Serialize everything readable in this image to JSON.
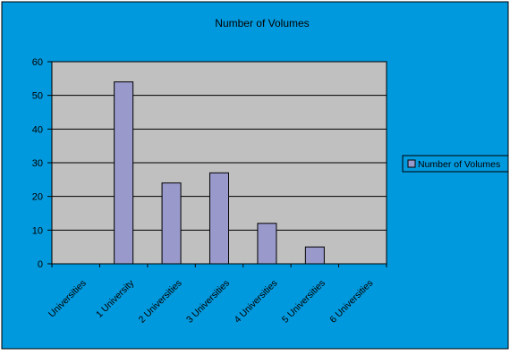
{
  "chart_data": {
    "type": "bar",
    "title": "Number of Volumes",
    "categories": [
      "Universities",
      "1 University",
      "2 Universities",
      "3 Universities",
      "4 Universities",
      "5 Universities",
      "6 Universities"
    ],
    "series": [
      {
        "name": "Number of Volumes",
        "values": [
          0,
          54,
          24,
          27,
          12,
          5,
          0
        ]
      }
    ],
    "yticks": [
      "0",
      "10",
      "20",
      "30",
      "40",
      "50",
      "60"
    ],
    "ylim": [
      0,
      60
    ],
    "grid": true,
    "legend_position": "right",
    "colors": {
      "chart_area": "#0099dd",
      "plot_area": "#c0c0c0",
      "bar_fill": "#9999cc",
      "bar_stroke": "#000000",
      "gridline": "#000000",
      "border": "#000000"
    }
  }
}
